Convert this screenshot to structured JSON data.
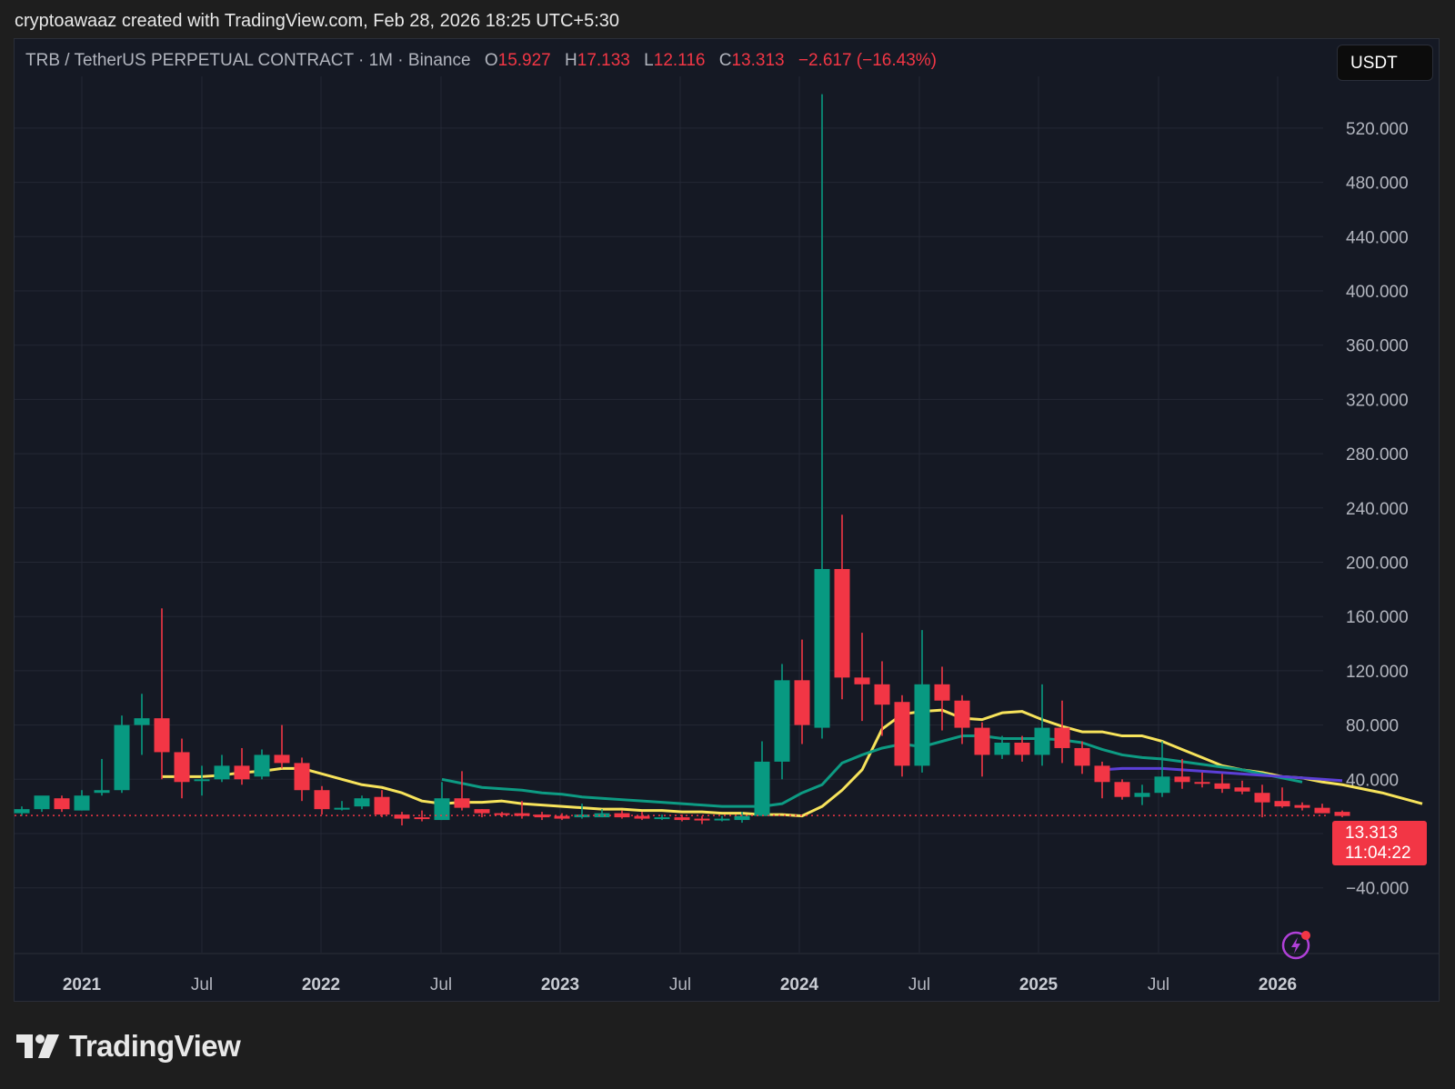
{
  "credit": "cryptoawaaz created with TradingView.com, Feb 28, 2026 18:25 UTC+5:30",
  "legend": {
    "symbol": "TRB / TetherUS PERPETUAL CONTRACT · 1M · Binance",
    "o_label": "O",
    "o_value": "15.927",
    "h_label": "H",
    "h_value": "17.133",
    "l_label": "L",
    "l_value": "12.116",
    "c_label": "C",
    "c_value": "13.313",
    "change": "−2.617 (−16.43%)"
  },
  "currency_button": "USDT",
  "last_price": {
    "value": "13.313",
    "countdown": "11:04:22"
  },
  "brand": {
    "name": "TradingView",
    "icon": "tradingview-logo-icon"
  },
  "icons": {
    "alert": "lightning-bolt-icon"
  },
  "colors": {
    "up": "#089981",
    "down": "#f23645",
    "ma_fast": "#f7e35b",
    "ma_slow": "#0d9b83",
    "ma_long": "#5b3fd6",
    "background": "#151924",
    "grid": "#242835",
    "axis_text": "#b2b5be"
  },
  "chart_data": {
    "type": "candlestick",
    "title": "TRB / TetherUS PERPETUAL CONTRACT · 1M · Binance",
    "xlabel": "",
    "ylabel": "USDT",
    "ylim": [
      -60,
      570
    ],
    "y_ticks": [
      -40,
      40,
      80,
      120,
      160,
      200,
      240,
      280,
      320,
      360,
      400,
      440,
      480,
      520
    ],
    "y_tick_labels": [
      "−40.000",
      "40.000",
      "80.000",
      "120.000",
      "160.000",
      "200.000",
      "240.000",
      "280.000",
      "320.000",
      "360.000",
      "400.000",
      "440.000",
      "480.000",
      "520.000"
    ],
    "x_tick_labels": [
      "2021",
      "Jul",
      "2022",
      "Jul",
      "2023",
      "Jul",
      "2024",
      "Jul",
      "2025",
      "Jul",
      "2026"
    ],
    "grid": true,
    "legend_position": "top-left",
    "candles_start": "2020-10",
    "candles": [
      [
        15,
        18,
        13,
        20
      ],
      [
        18,
        28,
        16,
        26
      ],
      [
        26,
        18,
        16,
        28
      ],
      [
        17,
        28,
        17,
        32
      ],
      [
        30,
        32,
        28,
        55
      ],
      [
        32,
        80,
        30,
        87
      ],
      [
        80,
        85,
        58,
        103
      ],
      [
        85,
        60,
        40,
        166
      ],
      [
        60,
        38,
        26,
        70
      ],
      [
        40,
        40,
        28,
        50
      ],
      [
        40,
        50,
        38,
        58
      ],
      [
        50,
        40,
        36,
        63
      ],
      [
        42,
        58,
        40,
        62
      ],
      [
        58,
        52,
        48,
        80
      ],
      [
        52,
        32,
        24,
        56
      ],
      [
        32,
        18,
        14,
        35
      ],
      [
        18,
        19,
        17,
        24
      ],
      [
        20,
        26,
        18,
        28
      ],
      [
        27,
        14,
        12,
        32
      ],
      [
        14,
        11,
        6,
        16
      ],
      [
        12,
        11,
        9,
        17
      ],
      [
        10,
        26,
        10,
        38
      ],
      [
        26,
        19,
        17,
        46
      ],
      [
        18,
        15,
        12,
        18
      ],
      [
        15,
        14,
        12,
        16
      ],
      [
        15,
        13,
        11,
        24
      ],
      [
        14,
        12,
        10,
        16
      ],
      [
        13,
        11,
        10,
        15
      ],
      [
        12,
        14,
        11,
        22
      ],
      [
        12,
        15,
        12,
        18
      ],
      [
        15,
        12,
        11,
        17
      ],
      [
        13,
        11,
        10,
        16
      ],
      [
        11,
        12,
        10,
        14
      ],
      [
        12,
        10,
        9,
        14
      ],
      [
        11,
        10,
        7,
        13
      ],
      [
        11,
        11,
        9,
        13
      ],
      [
        10,
        13,
        8,
        16
      ],
      [
        13,
        53,
        13,
        68
      ],
      [
        53,
        113,
        40,
        125
      ],
      [
        113,
        80,
        66,
        143
      ],
      [
        78,
        195,
        70,
        545
      ],
      [
        195,
        115,
        99,
        235
      ],
      [
        115,
        110,
        83,
        148
      ],
      [
        110,
        95,
        72,
        127
      ],
      [
        97,
        50,
        42,
        102
      ],
      [
        50,
        110,
        45,
        150
      ],
      [
        110,
        98,
        76,
        123
      ],
      [
        98,
        78,
        66,
        102
      ],
      [
        78,
        58,
        42,
        82
      ],
      [
        58,
        67,
        55,
        72
      ],
      [
        67,
        58,
        53,
        72
      ],
      [
        58,
        78,
        50,
        110
      ],
      [
        78,
        63,
        52,
        98
      ],
      [
        63,
        50,
        44,
        68
      ],
      [
        50,
        38,
        26,
        53
      ],
      [
        38,
        27,
        25,
        40
      ],
      [
        27,
        30,
        21,
        36
      ],
      [
        30,
        42,
        27,
        68
      ],
      [
        42,
        38,
        33,
        55
      ],
      [
        38,
        37,
        34,
        45
      ],
      [
        37,
        33,
        30,
        44
      ],
      [
        34,
        31,
        29,
        39
      ],
      [
        30,
        23,
        12,
        36
      ],
      [
        24,
        20,
        19,
        34
      ],
      [
        21,
        19,
        17,
        23
      ],
      [
        19,
        15,
        15,
        22
      ],
      [
        16,
        13,
        12,
        17
      ]
    ],
    "candle_format": [
      "open",
      "close",
      "low",
      "high"
    ],
    "series": [
      {
        "name": "MA fast (yellow)",
        "start_index": 7,
        "values": [
          42,
          42,
          42,
          43,
          45,
          46,
          48,
          48,
          44,
          40,
          36,
          34,
          30,
          24,
          22,
          23,
          23,
          24,
          22,
          21,
          20,
          19,
          18,
          18,
          17,
          17,
          16,
          16,
          15,
          15,
          14,
          14,
          13,
          20,
          32,
          47,
          77,
          88,
          90,
          91,
          85,
          84,
          89,
          90,
          84,
          79,
          75,
          75,
          72,
          72,
          68,
          62,
          56,
          50,
          47,
          45,
          42,
          41,
          38,
          36,
          33,
          30,
          26,
          22
        ]
      },
      {
        "name": "MA slow (teal)",
        "start_index": 21,
        "values": [
          40,
          37,
          34,
          33,
          32,
          30,
          29,
          27,
          26,
          25,
          24,
          23,
          22,
          21,
          20,
          20,
          20,
          22,
          30,
          36,
          52,
          58,
          63,
          66,
          64,
          68,
          72,
          72,
          70,
          70,
          70,
          69,
          67,
          62,
          58,
          56,
          55,
          53,
          51,
          49,
          47,
          44,
          41,
          38
        ]
      },
      {
        "name": "MA long (purple)",
        "start_index": 54,
        "values": [
          47,
          48,
          48,
          48,
          47,
          46,
          45,
          44,
          43,
          42,
          41,
          40,
          39
        ]
      }
    ]
  }
}
